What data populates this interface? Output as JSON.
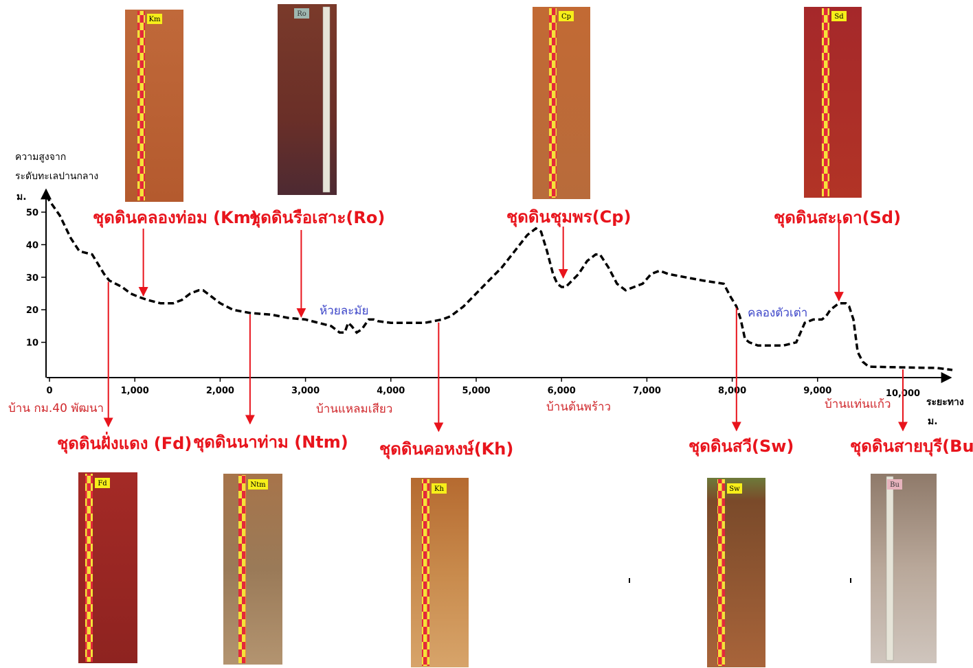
{
  "chart_data": {
    "type": "line",
    "ylabel": [
      "ความสูงจาก",
      "ระดับทะเลปานกลาง",
      "ม."
    ],
    "xlabel": [
      "ระยะทาง",
      "ม."
    ],
    "ylim": [
      0,
      58
    ],
    "xlim": [
      0,
      10600
    ],
    "x_ticks": [
      {
        "value": 0,
        "label": "0"
      },
      {
        "value": 1000,
        "label": "1,000"
      },
      {
        "value": 2000,
        "label": "2,000"
      },
      {
        "value": 3000,
        "label": "3,000"
      },
      {
        "value": 4000,
        "label": "4,000"
      },
      {
        "value": 5000,
        "label": "5,000"
      },
      {
        "value": 6000,
        "label": "6,000"
      },
      {
        "value": 7000,
        "label": "7,000"
      },
      {
        "value": 8000,
        "label": "8,000"
      },
      {
        "value": 9000,
        "label": "9,000"
      },
      {
        "value": 10000,
        "label": "10,000"
      }
    ],
    "y_ticks": [
      {
        "value": 10,
        "label": "10"
      },
      {
        "value": 20,
        "label": "20"
      },
      {
        "value": 30,
        "label": "30"
      },
      {
        "value": 40,
        "label": "40"
      },
      {
        "value": 50,
        "label": "50"
      }
    ],
    "grid": false,
    "series": [
      {
        "style": "dashed",
        "color": "#000000",
        "x": [
          -40,
          120,
          250,
          350,
          500,
          570,
          640,
          700,
          850,
          950,
          1040,
          1150,
          1300,
          1450,
          1550,
          1650,
          1750,
          1800,
          1900,
          2000,
          2150,
          2350,
          2600,
          2800,
          3000,
          3150,
          3300,
          3400,
          3460,
          3500,
          3540,
          3600,
          3660,
          3740,
          3800,
          3850,
          4000,
          4200,
          4400,
          4600,
          4700,
          4850,
          5000,
          5150,
          5300,
          5450,
          5600,
          5700,
          5760,
          5830,
          5900,
          5950,
          6000,
          6050,
          6200,
          6300,
          6400,
          6450,
          6550,
          6650,
          6750,
          6850,
          6950,
          7050,
          7150,
          7250,
          7450,
          7650,
          7900,
          7980,
          8050,
          8100,
          8150,
          8200,
          8300,
          8450,
          8600,
          8750,
          8800,
          8850,
          8950,
          9050,
          9100,
          9150,
          9250,
          9330,
          9370,
          9420,
          9470,
          9530,
          9600,
          9800,
          10000,
          10200,
          10400,
          10580
        ],
        "y": [
          55,
          49,
          42,
          38,
          37,
          34,
          31,
          29,
          27,
          25,
          24,
          23,
          22,
          22,
          23,
          25,
          26,
          26,
          24,
          22,
          20,
          19,
          18.5,
          17.5,
          17,
          16,
          15,
          13,
          13,
          16,
          15,
          13,
          14,
          17,
          17,
          16.5,
          16,
          16,
          16,
          17,
          18,
          21,
          25,
          29,
          33,
          38,
          43,
          45,
          44,
          38,
          31,
          28,
          27,
          27,
          31,
          35,
          37,
          37,
          33,
          28,
          26,
          27,
          28,
          31,
          32,
          31,
          30,
          29,
          28,
          24,
          21,
          17,
          11,
          10,
          9,
          9,
          9,
          10,
          13,
          16,
          17,
          17,
          18,
          20,
          22,
          22,
          21,
          17,
          7,
          4,
          2.5,
          2.4,
          2.3,
          2.2,
          2.1,
          1.5
        ]
      }
    ],
    "soil_series": [
      {
        "label": "ชุดดินคลองท่อม (Km)",
        "code": "Km",
        "x": 1100,
        "y": 23.5,
        "position": "top"
      },
      {
        "label": "ชุดดินรือเสาะ(Ro)",
        "code": "Ro",
        "x": 2950,
        "y": 17,
        "position": "top"
      },
      {
        "label": "ชุดดินชุมพร(Cp)",
        "code": "Cp",
        "x": 6020,
        "y": 29,
        "position": "top"
      },
      {
        "label": "ชุดดินสะเดา(Sd)",
        "code": "Sd",
        "x": 9250,
        "y": 22,
        "position": "top"
      },
      {
        "label": "ชุดดินฝั่งแดง (Fd)",
        "code": "Fd",
        "x": 690,
        "y": 29,
        "position": "bottom"
      },
      {
        "label": "ชุดดินนาท่าม (Ntm)",
        "code": "Ntm",
        "x": 2350,
        "y": 19,
        "position": "bottom"
      },
      {
        "label": "ชุดดินคอหงษ์(Kh)",
        "code": "Kh",
        "x": 4560,
        "y": 16.5,
        "position": "bottom"
      },
      {
        "label": "ชุดดินสวี(Sw)",
        "code": "Sw",
        "x": 8050,
        "y": 21,
        "position": "bottom"
      },
      {
        "label": "ชุดดินสายบุรี(Bu)",
        "code": "Bu",
        "x": 10000,
        "y": 2.1,
        "position": "bottom"
      }
    ],
    "villages": [
      {
        "label": "บ้าน กม.40 พัฒนา",
        "x": 150
      },
      {
        "label": "บ้านแหลมเสียว",
        "x": 3600
      },
      {
        "label": "บ้านต้นพร้าว",
        "x": 6230
      },
      {
        "label": "บ้านแท่นแก้ว",
        "x": 9700
      }
    ],
    "streams": [
      {
        "label": "ห้วยละมัย",
        "x": 3620,
        "y": 21
      },
      {
        "label": "คลองตัวเต่า",
        "x": 8560,
        "y": 20.5
      }
    ]
  },
  "colors": {
    "label": "#e8141c",
    "arrow": "#e8141c",
    "village": "#d0282c",
    "stream": "#3b44c8",
    "profile": "#000000"
  }
}
